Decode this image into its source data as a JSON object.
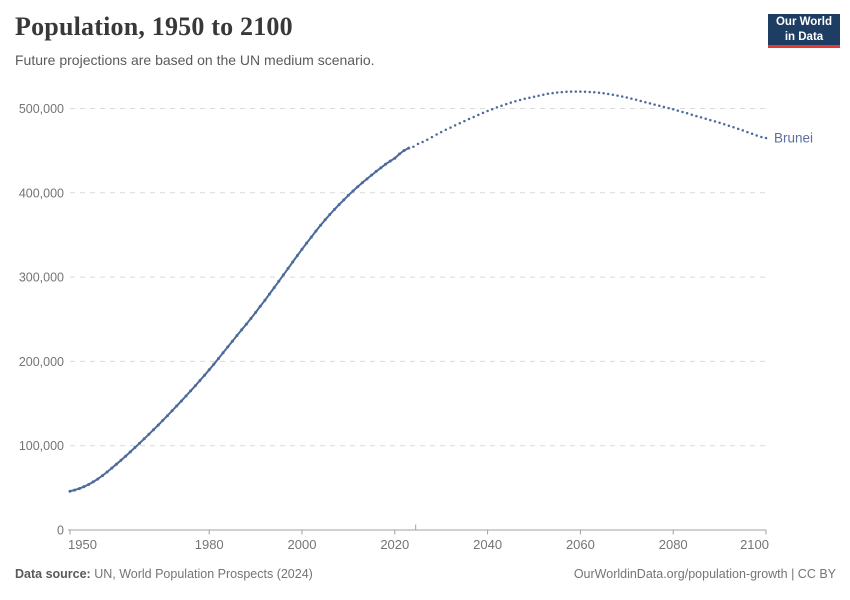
{
  "header": {
    "title": "Population, 1950 to 2100",
    "subtitle": "Future projections are based on the UN medium scenario.",
    "logo": {
      "line1": "Our World",
      "line2": "in Data"
    }
  },
  "footer": {
    "datasource_label": "Data source:",
    "datasource": " UN, World Population Prospects (2024)",
    "link": "OurWorldinData.org/population-growth | CC BY"
  },
  "colors": {
    "navy": "#1d3d63",
    "red": "#e23b33",
    "series": "#4c6a9c",
    "series_label": "#5b6e9e",
    "grid": "#dadada",
    "axis": "#a1a1a1",
    "tick_text": "#757575",
    "title_text": "#383838",
    "subtitle_text": "#5b5b5b",
    "footer_text": "#757575"
  },
  "chart_data": {
    "type": "line",
    "title": "Population, 1950 to 2100",
    "subtitle": "Future projections are based on the UN medium scenario.",
    "entity": "Brunei",
    "xlabel": "",
    "ylabel": "",
    "xlim": [
      1950,
      2100
    ],
    "ylim": [
      0,
      530000
    ],
    "grid": "dashed horizontal",
    "legend_position": "end-of-line label",
    "x_ticks": [
      1950,
      1980,
      2000,
      2020,
      2040,
      2060,
      2080,
      2100
    ],
    "y_ticks": [
      0,
      100000,
      200000,
      300000,
      400000,
      500000
    ],
    "y_tick_labels": [
      "0",
      "100,000",
      "200,000",
      "300,000",
      "400,000",
      "500,000"
    ],
    "projection_start": 2023,
    "series": [
      {
        "name": "Brunei (estimates)",
        "style": "solid",
        "points": [
          [
            1950,
            46000
          ],
          [
            1955,
            57000
          ],
          [
            1960,
            78000
          ],
          [
            1965,
            103000
          ],
          [
            1970,
            130000
          ],
          [
            1975,
            159000
          ],
          [
            1980,
            190000
          ],
          [
            1985,
            224000
          ],
          [
            1990,
            258000
          ],
          [
            1995,
            295000
          ],
          [
            2000,
            333000
          ],
          [
            2005,
            368000
          ],
          [
            2010,
            397000
          ],
          [
            2015,
            421000
          ],
          [
            2020,
            441000
          ],
          [
            2023,
            453000
          ]
        ]
      },
      {
        "name": "Brunei (projection, UN medium scenario)",
        "style": "dotted",
        "points": [
          [
            2023,
            453000
          ],
          [
            2025,
            458000
          ],
          [
            2030,
            472000
          ],
          [
            2035,
            485000
          ],
          [
            2040,
            497000
          ],
          [
            2045,
            507000
          ],
          [
            2050,
            514000
          ],
          [
            2055,
            519000
          ],
          [
            2060,
            520000
          ],
          [
            2065,
            518000
          ],
          [
            2070,
            513000
          ],
          [
            2075,
            506000
          ],
          [
            2080,
            499000
          ],
          [
            2085,
            491000
          ],
          [
            2090,
            483000
          ],
          [
            2095,
            474000
          ],
          [
            2100,
            465000
          ]
        ]
      }
    ]
  }
}
